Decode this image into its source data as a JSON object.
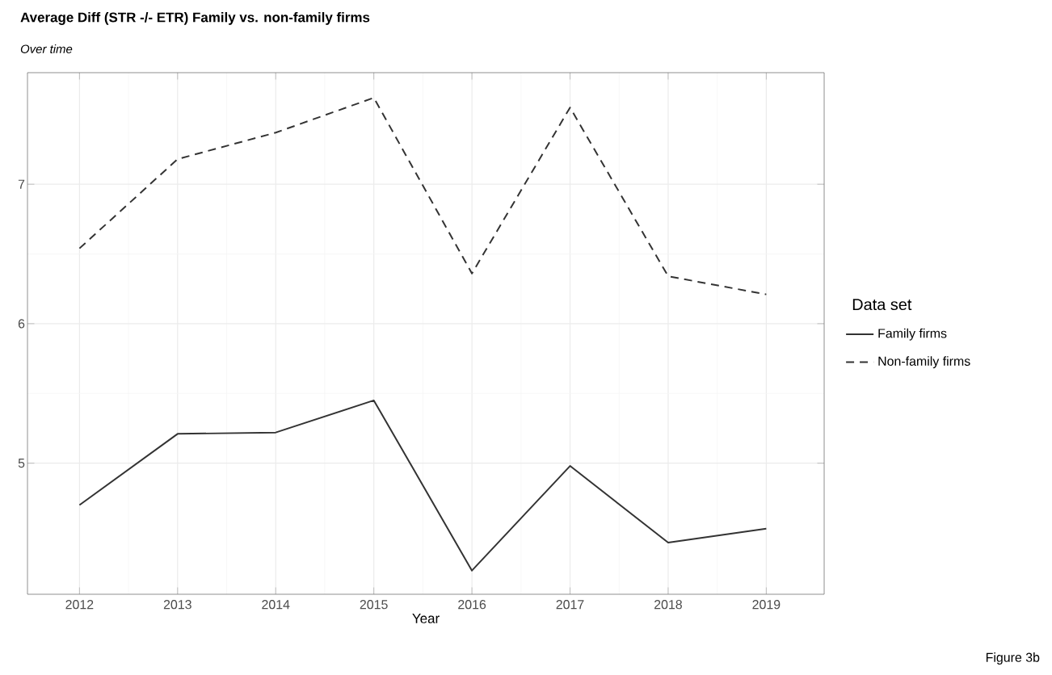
{
  "chart_data": {
    "type": "line",
    "title": "Average Diff (STR -/- ETR) Family vs. non-family firms",
    "subtitle": "Over time",
    "xlabel": "Year",
    "legend_title": "Data set",
    "x": [
      2012,
      2013,
      2014,
      2015,
      2016,
      2017,
      2018,
      2019
    ],
    "series": [
      {
        "name": "Family firms",
        "color": "#333333",
        "line_style": "solid",
        "values": [
          4.7,
          5.21,
          5.22,
          5.45,
          4.23,
          4.98,
          4.43,
          4.53
        ]
      },
      {
        "name": "Non-family firms",
        "color": "#333333",
        "line_style": "dashed",
        "values": [
          6.54,
          7.18,
          7.37,
          7.62,
          6.36,
          7.55,
          6.34,
          6.21
        ]
      }
    ],
    "xlim": [
      2011.47,
      2019.59
    ],
    "ylim": [
      4.06,
      7.8
    ],
    "xticks": [
      2012,
      2013,
      2014,
      2015,
      2016,
      2017,
      2018,
      2019
    ],
    "yticks": [
      5,
      6,
      7
    ],
    "grid": true,
    "legend": "right",
    "marker": "none",
    "annotations": [
      "Figure 3b"
    ]
  }
}
